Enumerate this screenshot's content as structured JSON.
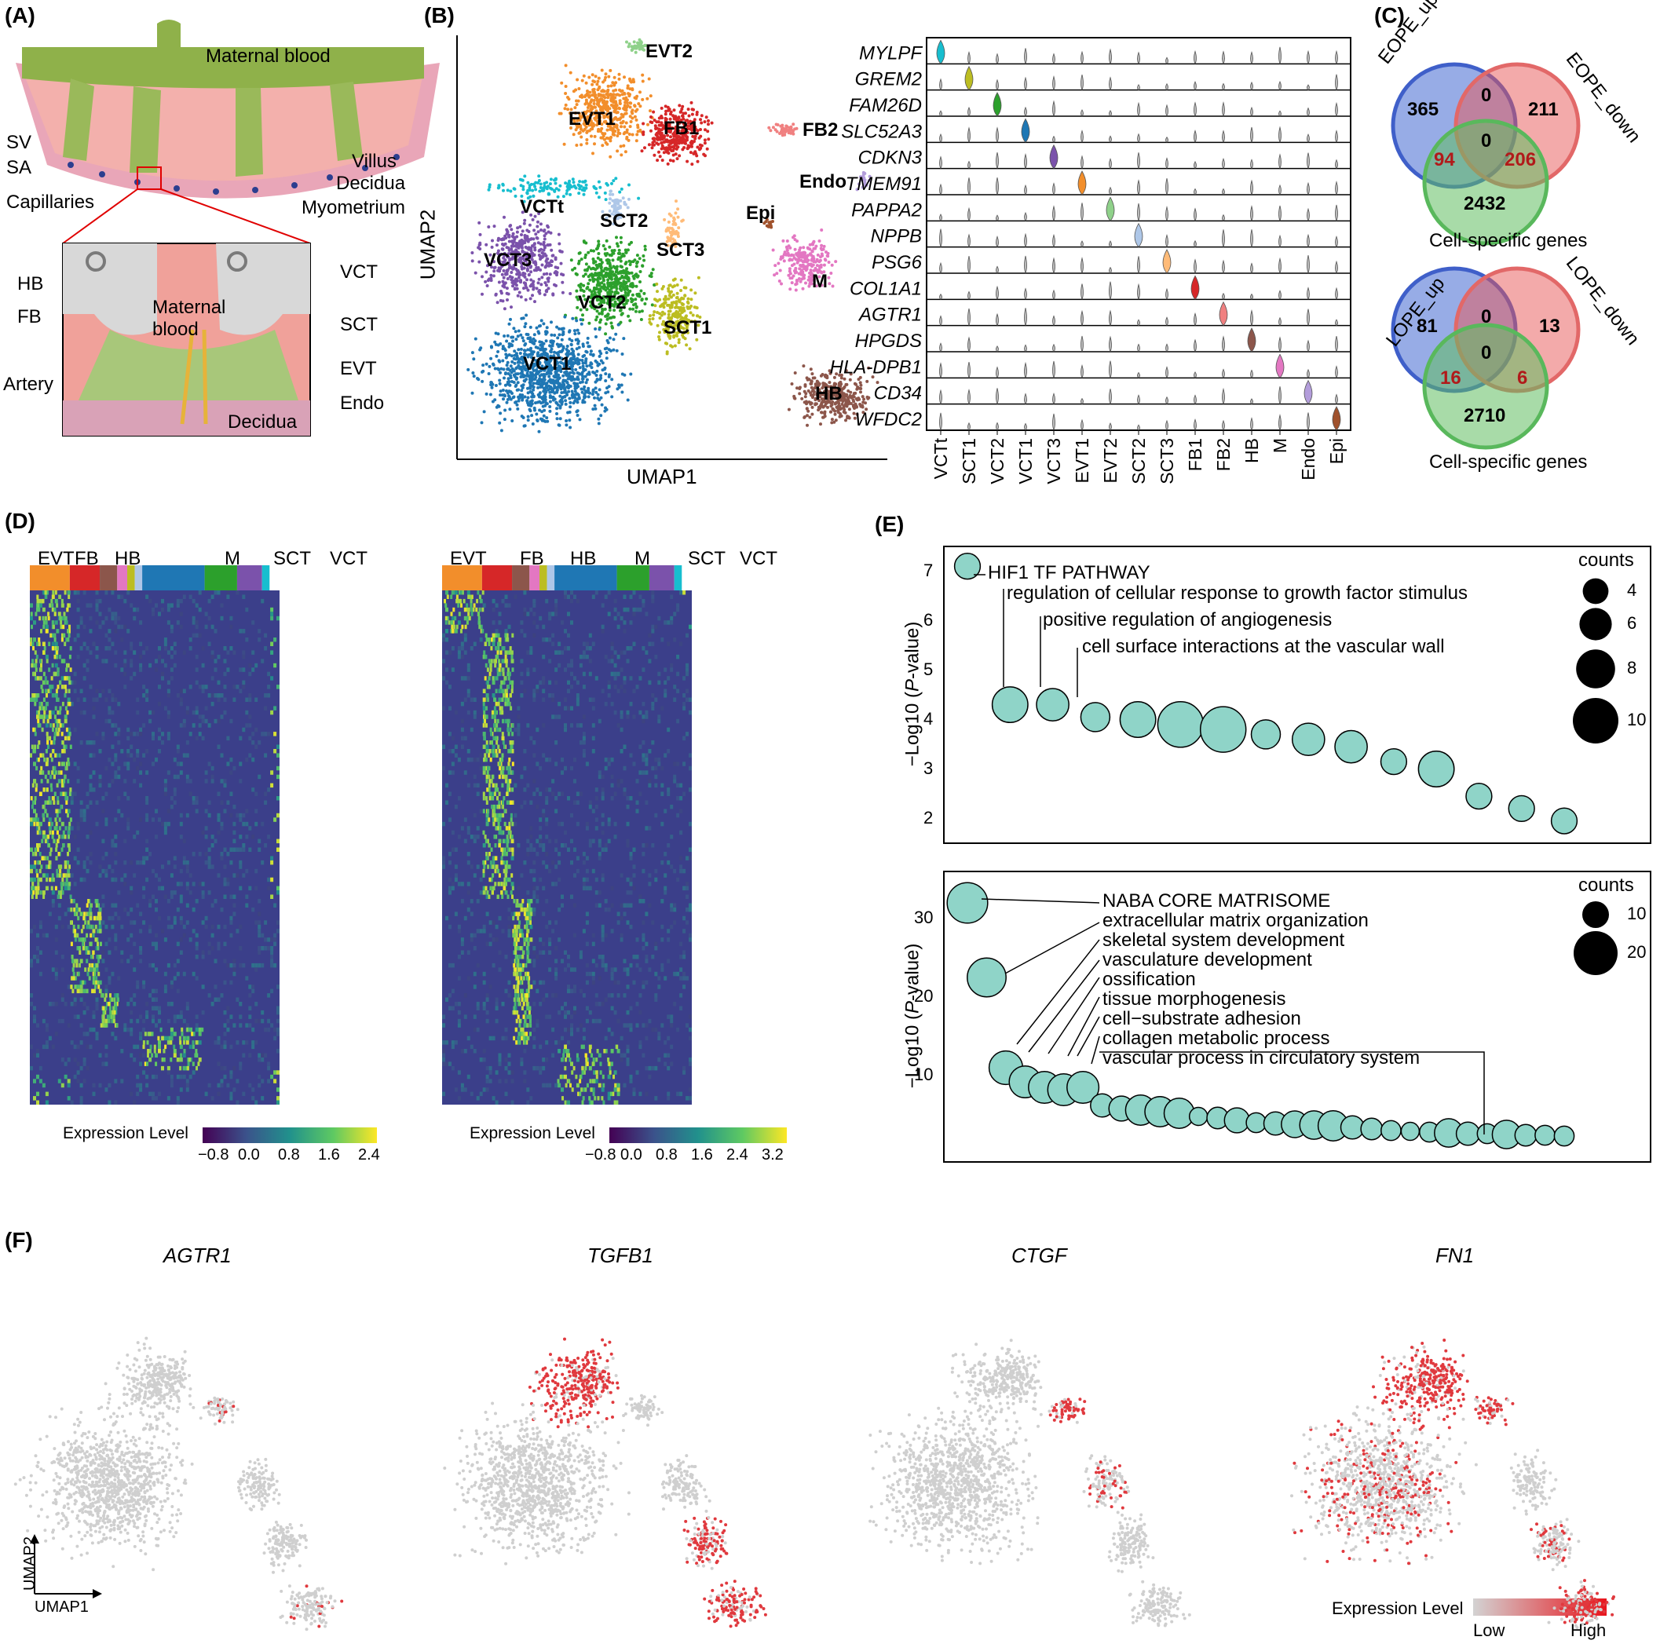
{
  "panels": {
    "A": {
      "label": "(A)",
      "top_labels": [
        "Maternal blood",
        "SV",
        "SA",
        "Villus",
        "Decidua",
        "Myometrium"
      ],
      "inset_labels": [
        "Capillaries",
        "HB",
        "FB",
        "Maternal blood",
        "Artery",
        "VCT",
        "SCT",
        "EVT",
        "Endo",
        "Decidua"
      ]
    },
    "B": {
      "label": "(B)",
      "xlabel": "UMAP1",
      "ylabel": "UMAP2",
      "clusters": [
        {
          "name": "EVT2",
          "color": "#8fd18a"
        },
        {
          "name": "EVT1",
          "color": "#f28e2b"
        },
        {
          "name": "FB1",
          "color": "#d62728"
        },
        {
          "name": "FB2",
          "color": "#f08080"
        },
        {
          "name": "Endo",
          "color": "#b39ddb"
        },
        {
          "name": "Epi",
          "color": "#a0522d"
        },
        {
          "name": "VCTt",
          "color": "#17becf"
        },
        {
          "name": "SCT2",
          "color": "#aec7e8"
        },
        {
          "name": "VCT3",
          "color": "#7b52ab"
        },
        {
          "name": "SCT3",
          "color": "#ffbb78"
        },
        {
          "name": "VCT2",
          "color": "#2ca02c"
        },
        {
          "name": "SCT1",
          "color": "#bcbd22"
        },
        {
          "name": "M",
          "color": "#e377c2"
        },
        {
          "name": "VCT1",
          "color": "#1f77b4"
        },
        {
          "name": "HB",
          "color": "#8c564b"
        }
      ],
      "violin_genes": [
        "MYLPF",
        "GREM2",
        "FAM26D",
        "SLC52A3",
        "CDKN3",
        "TMEM91",
        "PAPPA2",
        "NPPB",
        "PSG6",
        "COL1A1",
        "AGTR1",
        "HPGDS",
        "HLA-DPB1",
        "CD34",
        "WFDC2"
      ],
      "violin_celltypes": [
        "VCTt",
        "SCT1",
        "VCT2",
        "VCT1",
        "VCT3",
        "EVT1",
        "EVT2",
        "SCT2",
        "SCT3",
        "FB1",
        "FB2",
        "HB",
        "M",
        "Endo",
        "Epi"
      ]
    },
    "C": {
      "label": "(C)",
      "venn1": {
        "a": "EOPE_up",
        "b": "EOPE_down",
        "c": "Cell-specific genes",
        "a_only": "365",
        "ab": "0",
        "b_only": "211",
        "abc": "0",
        "ac": "94",
        "bc": "206",
        "c_only": "2432"
      },
      "venn2": {
        "a": "LOPE_up",
        "b": "LOPE_down",
        "c": "Cell-specific genes",
        "a_only": "81",
        "ab": "0",
        "b_only": "13",
        "abc": "0",
        "ac": "16",
        "bc": "6",
        "c_only": "2710"
      }
    },
    "D": {
      "label": "(D)",
      "groups": [
        "EVT",
        "FB",
        "HB",
        "M",
        "SCT",
        "VCT"
      ],
      "legend_title": "Expression Level",
      "left_ticks": [
        "−0.8",
        "0.0",
        "0.8",
        "1.6",
        "2.4"
      ],
      "right_ticks": [
        "−0.8",
        "0.0",
        "0.8",
        "1.6",
        "2.4",
        "3.2"
      ]
    },
    "E": {
      "label": "(E)",
      "ylabel_prefix": "−Log10 (",
      "ylabel_p": "P",
      "ylabel_suffix": "-value)",
      "top": {
        "yticks": [
          "2",
          "3",
          "4",
          "5",
          "6",
          "7"
        ],
        "annotations": [
          "HIF1 TF PATHWAY",
          "regulation of cellular response to growth factor stimulus",
          "positive regulation of angiogenesis",
          "cell surface interactions at the vascular wall"
        ],
        "legend_title": "counts",
        "legend_values": [
          "4",
          "6",
          "8",
          "10"
        ]
      },
      "bottom": {
        "yticks": [
          "10",
          "20",
          "30"
        ],
        "annotations": [
          "NABA CORE MATRISOME",
          "extracellular matrix organization",
          "skeletal system development",
          "vasculature development",
          "ossification",
          "tissue morphogenesis",
          "cell−substrate adhesion",
          "collagen metabolic process",
          "vascular process in circulatory system"
        ],
        "legend_title": "counts",
        "legend_values": [
          "10",
          "20"
        ]
      }
    },
    "F": {
      "label": "(F)",
      "genes": [
        "AGTR1",
        "TGFB1",
        "CTGF",
        "FN1"
      ],
      "axis_x": "UMAP1",
      "axis_y": "UMAP2",
      "legend_title": "Expression Level",
      "legend_low": "Low",
      "legend_high": "High"
    }
  },
  "chart_data": [
    {
      "type": "scatter",
      "title": "(E) top",
      "xlabel": "",
      "ylabel": "−Log10 (P-value)",
      "ylim": [
        1.5,
        7.5
      ],
      "points": [
        {
          "rank": 1,
          "y": 7.1,
          "count": 4,
          "label": "HIF1 TF PATHWAY"
        },
        {
          "rank": 2,
          "y": 4.3,
          "count": 7,
          "label": "regulation of cellular response to growth factor stimulus"
        },
        {
          "rank": 3,
          "y": 4.3,
          "count": 6,
          "label": "positive regulation of angiogenesis"
        },
        {
          "rank": 4,
          "y": 4.05,
          "count": 5,
          "label": "cell surface interactions at the vascular wall"
        },
        {
          "rank": 5,
          "y": 4.0,
          "count": 7
        },
        {
          "rank": 6,
          "y": 3.9,
          "count": 10
        },
        {
          "rank": 7,
          "y": 3.8,
          "count": 10
        },
        {
          "rank": 8,
          "y": 3.7,
          "count": 5
        },
        {
          "rank": 9,
          "y": 3.6,
          "count": 6
        },
        {
          "rank": 10,
          "y": 3.45,
          "count": 6
        },
        {
          "rank": 11,
          "y": 3.15,
          "count": 4
        },
        {
          "rank": 12,
          "y": 3.0,
          "count": 7
        },
        {
          "rank": 13,
          "y": 2.45,
          "count": 4
        },
        {
          "rank": 14,
          "y": 2.2,
          "count": 4
        },
        {
          "rank": 15,
          "y": 1.95,
          "count": 4
        }
      ]
    },
    {
      "type": "scatter",
      "title": "(E) bottom",
      "xlabel": "",
      "ylabel": "−Log10 (P-value)",
      "ylim": [
        0,
        35
      ],
      "points": [
        {
          "rank": 1,
          "y": 32,
          "count": 18,
          "label": "NABA CORE MATRISOME"
        },
        {
          "rank": 2,
          "y": 22.5,
          "count": 17,
          "label": "extracellular matrix organization"
        },
        {
          "rank": 3,
          "y": 11,
          "count": 14,
          "label": "skeletal system development"
        },
        {
          "rank": 4,
          "y": 9.2,
          "count": 13,
          "label": "vasculature development"
        },
        {
          "rank": 5,
          "y": 8.5,
          "count": 13,
          "label": "ossification"
        },
        {
          "rank": 6,
          "y": 8.2,
          "count": 13,
          "label": "tissue morphogenesis"
        },
        {
          "rank": 7,
          "y": 8.5,
          "count": 13,
          "label": "cell−substrate adhesion"
        },
        {
          "rank": 8,
          "y": 6.2,
          "count": 8,
          "label": "collagen metabolic process"
        },
        {
          "rank": 9,
          "y": 5.8,
          "count": 9
        },
        {
          "rank": 10,
          "y": 5.6,
          "count": 12
        },
        {
          "rank": 11,
          "y": 5.4,
          "count": 12
        },
        {
          "rank": 12,
          "y": 5.2,
          "count": 12
        },
        {
          "rank": 13,
          "y": 4.8,
          "count": 5
        },
        {
          "rank": 14,
          "y": 4.6,
          "count": 7
        },
        {
          "rank": 15,
          "y": 4.3,
          "count": 9
        },
        {
          "rank": 16,
          "y": 4.0,
          "count": 6
        },
        {
          "rank": 17,
          "y": 3.9,
          "count": 8
        },
        {
          "rank": 18,
          "y": 3.8,
          "count": 10
        },
        {
          "rank": 19,
          "y": 3.7,
          "count": 11
        },
        {
          "rank": 20,
          "y": 3.6,
          "count": 12
        },
        {
          "rank": 21,
          "y": 3.4,
          "count": 8
        },
        {
          "rank": 22,
          "y": 3.2,
          "count": 7
        },
        {
          "rank": 23,
          "y": 3.0,
          "count": 6
        },
        {
          "rank": 24,
          "y": 2.9,
          "count": 5
        },
        {
          "rank": 25,
          "y": 2.8,
          "count": 6
        },
        {
          "rank": 26,
          "y": 2.7,
          "count": 11
        },
        {
          "rank": 27,
          "y": 2.6,
          "count": 8
        },
        {
          "rank": 28,
          "y": 2.6,
          "count": 6
        },
        {
          "rank": 29,
          "y": 2.5,
          "count": 11,
          "label": "vascular process in circulatory system"
        },
        {
          "rank": 30,
          "y": 2.4,
          "count": 7
        },
        {
          "rank": 31,
          "y": 2.4,
          "count": 6
        },
        {
          "rank": 32,
          "y": 2.3,
          "count": 6
        }
      ]
    }
  ]
}
